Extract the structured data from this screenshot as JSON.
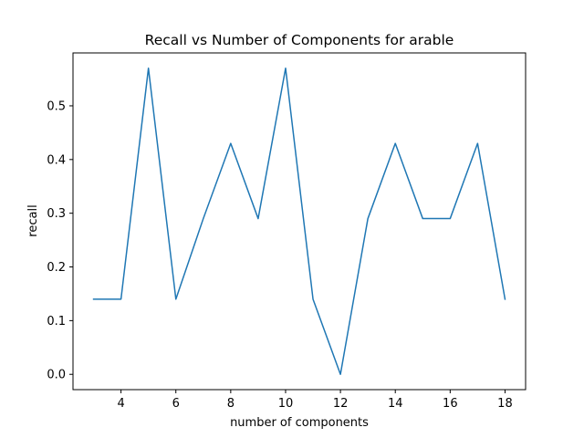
{
  "chart_data": {
    "type": "line",
    "title": "Recall vs Number of Components for arable",
    "xlabel": "number of components",
    "ylabel": "recall",
    "x": [
      3,
      4,
      5,
      6,
      7,
      8,
      9,
      10,
      11,
      12,
      13,
      14,
      15,
      16,
      17,
      18
    ],
    "series": [
      {
        "values": [
          0.14,
          0.14,
          0.57,
          0.14,
          0.29,
          0.43,
          0.29,
          0.57,
          0.14,
          0.0,
          0.29,
          0.43,
          0.29,
          0.29,
          0.43,
          0.14
        ],
        "color": "#1f77b4"
      }
    ],
    "xlim": [
      2.25,
      18.75
    ],
    "ylim": [
      -0.0285,
      0.5985
    ],
    "xticks": [
      4,
      6,
      8,
      10,
      12,
      14,
      16,
      18
    ],
    "xtick_labels": [
      "4",
      "6",
      "8",
      "10",
      "12",
      "14",
      "16",
      "18"
    ],
    "yticks": [
      0.0,
      0.1,
      0.2,
      0.3,
      0.4,
      0.5
    ],
    "ytick_labels": [
      "0.0",
      "0.1",
      "0.2",
      "0.3",
      "0.4",
      "0.5"
    ],
    "grid": false,
    "legend": "none"
  }
}
